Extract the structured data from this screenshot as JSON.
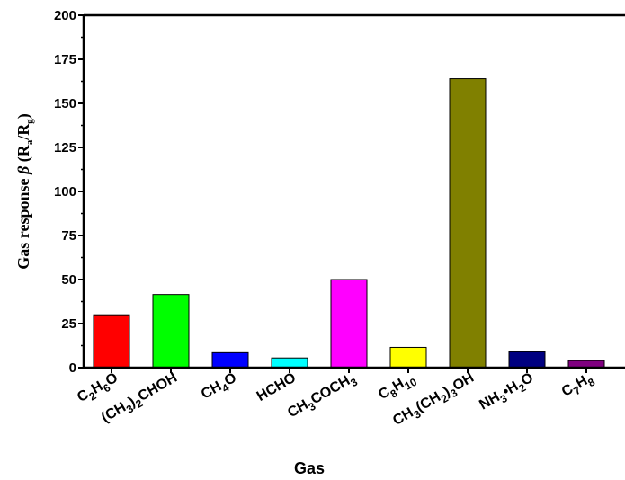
{
  "chart_data": {
    "type": "bar",
    "title": "",
    "xlabel": "Gas",
    "ylabel": {
      "text": "Gas response ",
      "beta": "β",
      "open": " (R",
      "sub_a": "a",
      "slash": "/R",
      "sub_g": "g",
      "close": ")"
    },
    "ylim": [
      0,
      200
    ],
    "yticks": [
      0,
      25,
      50,
      75,
      100,
      125,
      150,
      175,
      200
    ],
    "grid": false,
    "categories": [
      {
        "parts": [
          [
            "C",
            ""
          ],
          [
            "2",
            "sub"
          ],
          [
            "H",
            ""
          ],
          [
            "6",
            "sub"
          ],
          [
            "O",
            ""
          ]
        ]
      },
      {
        "parts": [
          [
            "(CH",
            ""
          ],
          [
            "3",
            "sub"
          ],
          [
            ")",
            ""
          ],
          [
            "2",
            "sub"
          ],
          [
            "CHOH",
            ""
          ]
        ]
      },
      {
        "parts": [
          [
            "CH",
            ""
          ],
          [
            "4",
            "sub"
          ],
          [
            "O",
            ""
          ]
        ]
      },
      {
        "parts": [
          [
            "HCHO",
            ""
          ]
        ]
      },
      {
        "parts": [
          [
            "CH",
            ""
          ],
          [
            "3",
            "sub"
          ],
          [
            "COCH",
            ""
          ],
          [
            "3",
            "sub"
          ]
        ]
      },
      {
        "parts": [
          [
            "C",
            ""
          ],
          [
            "8",
            "sub"
          ],
          [
            "H",
            ""
          ],
          [
            "10",
            "sub"
          ]
        ]
      },
      {
        "parts": [
          [
            "CH",
            ""
          ],
          [
            "3",
            "sub"
          ],
          [
            "(CH",
            ""
          ],
          [
            "2",
            "sub"
          ],
          [
            ")",
            ""
          ],
          [
            "3",
            "sub"
          ],
          [
            "OH",
            ""
          ]
        ]
      },
      {
        "parts": [
          [
            "NH",
            ""
          ],
          [
            "3",
            "sub"
          ],
          [
            "•H",
            ""
          ],
          [
            "2",
            "sub"
          ],
          [
            "O",
            ""
          ]
        ]
      },
      {
        "parts": [
          [
            "C",
            ""
          ],
          [
            "7",
            "sub"
          ],
          [
            "H",
            ""
          ],
          [
            "8",
            "sub"
          ]
        ]
      }
    ],
    "values": [
      30,
      41.5,
      8.5,
      5.5,
      50,
      11.5,
      164,
      9,
      4
    ],
    "colors": [
      "#ff0000",
      "#00ff00",
      "#0000ff",
      "#00ffff",
      "#ff00ff",
      "#ffff00",
      "#808000",
      "#000080",
      "#800080"
    ]
  }
}
